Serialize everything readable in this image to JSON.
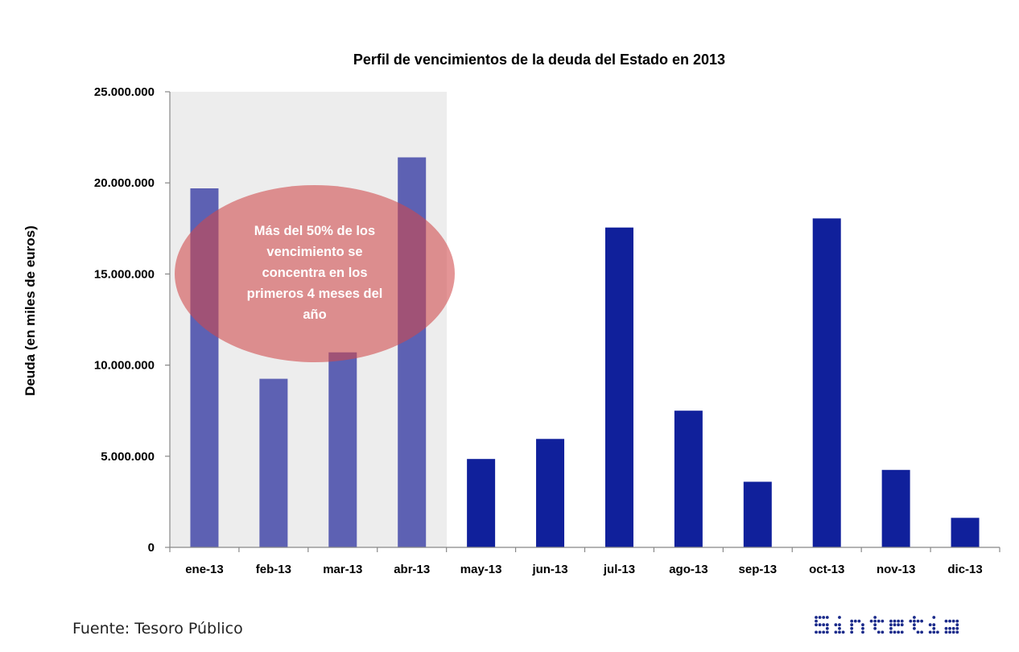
{
  "chart_data": {
    "type": "bar",
    "title": "Perfil de vencimientos de la deuda del Estado en 2013",
    "xlabel": "",
    "ylabel": "Deuda (en miles de euros)",
    "categories": [
      "ene-13",
      "feb-13",
      "mar-13",
      "abr-13",
      "may-13",
      "jun-13",
      "jul-13",
      "ago-13",
      "sep-13",
      "oct-13",
      "nov-13",
      "dic-13"
    ],
    "values": [
      19700000,
      9250000,
      10700000,
      21400000,
      4850000,
      5950000,
      17550000,
      7500000,
      3600000,
      18050000,
      4250000,
      1620000
    ],
    "ylim": [
      0,
      25000000
    ],
    "yticks": [
      0,
      5000000,
      10000000,
      15000000,
      20000000,
      25000000
    ],
    "ytick_labels": [
      "0",
      "5.000.000",
      "10.000.000",
      "15.000.000",
      "20.000.000",
      "25.000.000"
    ],
    "grid": false,
    "legend": "none",
    "highlight_range": [
      "ene-13",
      "abr-13"
    ],
    "annotation": {
      "lines": [
        "Más del 50% de los",
        "vencimiento se",
        "concentra en los",
        "primeros 4 meses del",
        "año"
      ]
    },
    "colors": {
      "bar": "#10209b",
      "bar_highlighted": "#5d61b3",
      "highlight_band": "#ededed",
      "annotation_fill": "#d0484a"
    }
  },
  "footer": {
    "source": "Fuente:  Tesoro Público",
    "logo_text": "sintetia"
  }
}
